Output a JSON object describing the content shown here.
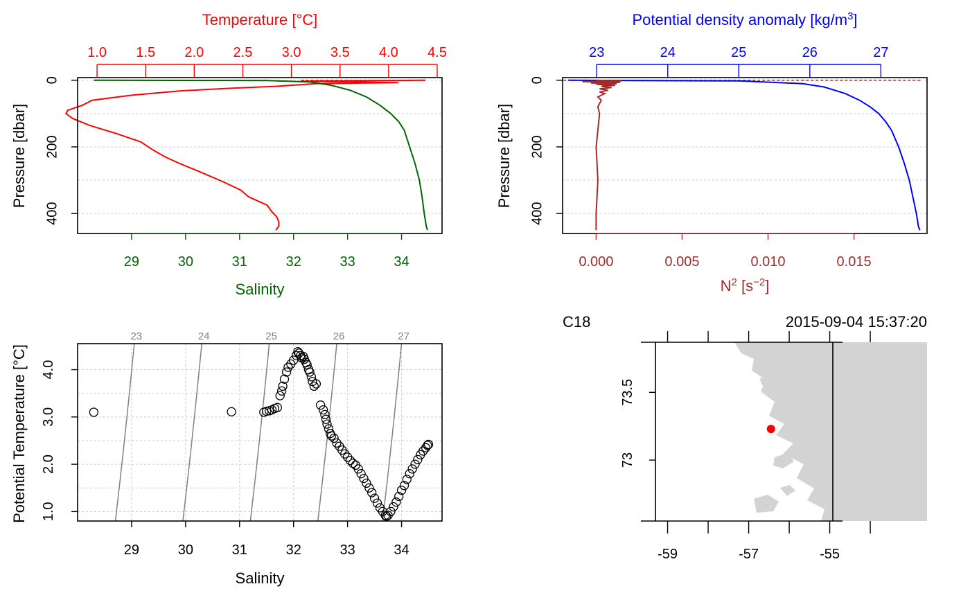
{
  "chart_data": [
    {
      "type": "line",
      "panel": "profile-temperature-salinity",
      "ylabel": "Pressure [dbar]",
      "ylim": [
        460,
        -8
      ],
      "y_ticks": [
        "0",
        "200",
        "400"
      ],
      "y_tick_values": [
        0,
        200,
        400
      ],
      "top_axis": {
        "label": "Temperature [°C]",
        "color": "#ff0000",
        "range": [
          0.8,
          4.55
        ],
        "ticks": [
          "1.0",
          "1.5",
          "2.0",
          "2.5",
          "3.0",
          "3.5",
          "4.0",
          "4.5"
        ],
        "tick_values": [
          1.0,
          1.5,
          2.0,
          2.5,
          3.0,
          3.5,
          4.0,
          4.5
        ]
      },
      "bottom_axis": {
        "label": "Salinity",
        "color": "#006400",
        "range": [
          28.0,
          34.75
        ],
        "ticks": [
          "29",
          "30",
          "31",
          "32",
          "33",
          "34"
        ],
        "tick_values": [
          29,
          30,
          31,
          32,
          33,
          34
        ]
      },
      "series": [
        {
          "name": "Temperature",
          "axis": "top",
          "color": "#ff0000",
          "points": [
            [
              4.38,
              0
            ],
            [
              3.1,
              3
            ],
            [
              4.1,
              7
            ],
            [
              3.25,
              10
            ],
            [
              2.85,
              18
            ],
            [
              2.3,
              25
            ],
            [
              1.85,
              32
            ],
            [
              1.35,
              45
            ],
            [
              0.95,
              60
            ],
            [
              0.85,
              75
            ],
            [
              0.7,
              90
            ],
            [
              0.68,
              100
            ],
            [
              0.75,
              115
            ],
            [
              0.92,
              135
            ],
            [
              1.2,
              160
            ],
            [
              1.45,
              185
            ],
            [
              1.58,
              210
            ],
            [
              1.7,
              230
            ],
            [
              1.85,
              250
            ],
            [
              2.02,
              270
            ],
            [
              2.18,
              290
            ],
            [
              2.3,
              305
            ],
            [
              2.48,
              330
            ],
            [
              2.56,
              350
            ],
            [
              2.75,
              375
            ],
            [
              2.8,
              395
            ],
            [
              2.85,
              410
            ],
            [
              2.87,
              425
            ],
            [
              2.87,
              438
            ],
            [
              2.84,
              450
            ]
          ]
        },
        {
          "name": "Salinity",
          "axis": "bottom",
          "color": "#006400",
          "points": [
            [
              28.3,
              0
            ],
            [
              31.5,
              1
            ],
            [
              32.3,
              5
            ],
            [
              32.7,
              15
            ],
            [
              33.05,
              30
            ],
            [
              33.35,
              50
            ],
            [
              33.6,
              75
            ],
            [
              33.8,
              100
            ],
            [
              33.95,
              125
            ],
            [
              34.05,
              150
            ],
            [
              34.15,
              200
            ],
            [
              34.25,
              250
            ],
            [
              34.33,
              300
            ],
            [
              34.38,
              350
            ],
            [
              34.42,
              400
            ],
            [
              34.46,
              440
            ],
            [
              34.48,
              450
            ]
          ]
        }
      ],
      "surface_lines": [
        {
          "axis": "bottom",
          "color": "#006400",
          "style": "dashed",
          "from": 28.3,
          "to": 31.5
        },
        {
          "axis": "top",
          "color": "#ff0000",
          "style": "dashed",
          "from": 3.1,
          "to": 4.38
        }
      ]
    },
    {
      "type": "line",
      "panel": "profile-density-n2",
      "ylabel": "Pressure [dbar]",
      "ylim": [
        460,
        -8
      ],
      "y_ticks": [
        "0",
        "200",
        "400"
      ],
      "y_tick_values": [
        0,
        200,
        400
      ],
      "top_axis": {
        "label": "Potential density anomaly [kg/m³]",
        "color": "#0000ff",
        "range": [
          22.52,
          27.65
        ],
        "ticks": [
          "23",
          "24",
          "25",
          "26",
          "27"
        ],
        "tick_values": [
          23,
          24,
          25,
          26,
          27
        ]
      },
      "bottom_axis": {
        "label": "N² [s⁻²]",
        "color": "#a52a2a",
        "range": [
          -0.00195,
          0.01925
        ],
        "ticks": [
          "0.000",
          "0.005",
          "0.010",
          "0.015"
        ],
        "tick_values": [
          0.0,
          0.005,
          0.01,
          0.015
        ]
      },
      "series": [
        {
          "name": "Potential density anomaly",
          "axis": "top",
          "color": "#0000ff",
          "points": [
            [
              22.6,
              0
            ],
            [
              25.0,
              2
            ],
            [
              25.9,
              10
            ],
            [
              26.2,
              20
            ],
            [
              26.5,
              40
            ],
            [
              26.7,
              60
            ],
            [
              26.85,
              80
            ],
            [
              26.97,
              100
            ],
            [
              27.07,
              125
            ],
            [
              27.15,
              150
            ],
            [
              27.25,
              200
            ],
            [
              27.33,
              250
            ],
            [
              27.4,
              300
            ],
            [
              27.45,
              350
            ],
            [
              27.5,
              400
            ],
            [
              27.53,
              440
            ],
            [
              27.55,
              450
            ]
          ]
        },
        {
          "name": "N²",
          "axis": "bottom",
          "color": "#a52a2a",
          "points": [
            [
              0.0,
              0
            ],
            [
              0.0015,
              2
            ],
            [
              -0.0008,
              4
            ],
            [
              0.0014,
              6
            ],
            [
              -0.0003,
              8
            ],
            [
              0.0012,
              10
            ],
            [
              0.0,
              12
            ],
            [
              0.0011,
              15
            ],
            [
              0.0003,
              18
            ],
            [
              0.0009,
              22
            ],
            [
              0.0002,
              26
            ],
            [
              0.0007,
              30
            ],
            [
              0.0002,
              35
            ],
            [
              0.0005,
              40
            ],
            [
              0.0001,
              50
            ],
            [
              0.0003,
              60
            ],
            [
              0.0001,
              80
            ],
            [
              0.0002,
              100
            ],
            [
              0.0001,
              150
            ],
            [
              0.0,
              200
            ],
            [
              0.0001,
              300
            ],
            [
              0.0,
              400
            ],
            [
              0.0,
              450
            ]
          ]
        }
      ],
      "surface_lines": [
        {
          "axis": "bottom",
          "color": "#a52a2a",
          "style": "dashed",
          "from": -0.0019,
          "to": 0.0189
        }
      ]
    },
    {
      "type": "scatter",
      "panel": "ts-diagram",
      "xlabel": "Salinity",
      "ylabel": "Potential Temperature [°C]",
      "xlim": [
        28.0,
        34.75
      ],
      "ylim": [
        0.8,
        4.55
      ],
      "x_ticks": [
        "29",
        "30",
        "31",
        "32",
        "33",
        "34"
      ],
      "x_tick_values": [
        29,
        30,
        31,
        32,
        33,
        34
      ],
      "y_ticks": [
        "1.0",
        "2.0",
        "3.0",
        "4.0"
      ],
      "y_tick_values": [
        1.0,
        2.0,
        3.0,
        4.0
      ],
      "isopycnals": [
        {
          "label": "23",
          "s_bottom": 28.7,
          "s_top": 29.05
        },
        {
          "label": "24",
          "s_bottom": 29.95,
          "s_top": 30.3
        },
        {
          "label": "25",
          "s_bottom": 31.2,
          "s_top": 31.55
        },
        {
          "label": "26",
          "s_bottom": 32.45,
          "s_top": 32.8
        },
        {
          "label": "27",
          "s_bottom": 33.65,
          "s_top": 34.0
        }
      ],
      "isopycnal_color": "#808080",
      "points": [
        [
          28.3,
          3.1
        ],
        [
          30.85,
          3.11
        ],
        [
          31.45,
          3.1
        ],
        [
          31.5,
          3.12
        ],
        [
          31.55,
          3.13
        ],
        [
          31.6,
          3.15
        ],
        [
          31.65,
          3.18
        ],
        [
          31.7,
          3.2
        ],
        [
          31.75,
          3.45
        ],
        [
          31.78,
          3.55
        ],
        [
          31.8,
          3.65
        ],
        [
          31.83,
          3.8
        ],
        [
          31.87,
          3.95
        ],
        [
          31.9,
          4.05
        ],
        [
          31.95,
          4.12
        ],
        [
          32.0,
          4.2
        ],
        [
          32.05,
          4.3
        ],
        [
          32.08,
          4.38
        ],
        [
          32.1,
          4.35
        ],
        [
          32.13,
          4.3
        ],
        [
          32.15,
          4.25
        ],
        [
          32.18,
          4.28
        ],
        [
          32.2,
          4.22
        ],
        [
          32.23,
          4.15
        ],
        [
          32.25,
          4.1
        ],
        [
          32.28,
          4.0
        ],
        [
          32.3,
          3.95
        ],
        [
          32.33,
          3.85
        ],
        [
          32.35,
          3.75
        ],
        [
          32.38,
          3.65
        ],
        [
          32.42,
          3.7
        ],
        [
          32.5,
          3.25
        ],
        [
          32.55,
          3.15
        ],
        [
          32.58,
          3.05
        ],
        [
          32.6,
          2.95
        ],
        [
          32.62,
          2.85
        ],
        [
          32.65,
          2.75
        ],
        [
          32.68,
          2.65
        ],
        [
          32.7,
          2.6
        ],
        [
          32.75,
          2.55
        ],
        [
          32.8,
          2.45
        ],
        [
          32.85,
          2.38
        ],
        [
          32.9,
          2.3
        ],
        [
          32.95,
          2.22
        ],
        [
          33.0,
          2.15
        ],
        [
          33.05,
          2.08
        ],
        [
          33.1,
          2.02
        ],
        [
          33.15,
          1.98
        ],
        [
          33.2,
          1.9
        ],
        [
          33.25,
          1.8
        ],
        [
          33.3,
          1.7
        ],
        [
          33.35,
          1.6
        ],
        [
          33.4,
          1.5
        ],
        [
          33.45,
          1.4
        ],
        [
          33.5,
          1.28
        ],
        [
          33.55,
          1.18
        ],
        [
          33.6,
          1.08
        ],
        [
          33.65,
          1.0
        ],
        [
          33.7,
          0.92
        ],
        [
          33.72,
          0.9
        ],
        [
          33.75,
          0.92
        ],
        [
          33.8,
          1.0
        ],
        [
          33.85,
          1.1
        ],
        [
          33.9,
          1.2
        ],
        [
          33.95,
          1.32
        ],
        [
          34.0,
          1.45
        ],
        [
          34.05,
          1.55
        ],
        [
          34.1,
          1.68
        ],
        [
          34.15,
          1.8
        ],
        [
          34.2,
          1.9
        ],
        [
          34.25,
          2.0
        ],
        [
          34.3,
          2.1
        ],
        [
          34.35,
          2.2
        ],
        [
          34.4,
          2.28
        ],
        [
          34.45,
          2.35
        ],
        [
          34.48,
          2.4
        ],
        [
          34.5,
          2.42
        ]
      ]
    },
    {
      "type": "map",
      "panel": "station-map",
      "station_label": "C18",
      "datetime": "2015-09-04 15:37:20",
      "lon_range": [
        -59.3,
        -52.6
      ],
      "lat_range": [
        72.55,
        73.87
      ],
      "x_ticks": [
        "-59",
        "-57",
        "-55"
      ],
      "x_tick_values": [
        -59,
        -57,
        -55
      ],
      "y_ticks": [
        "73.5",
        "73"
      ],
      "y_tick_values": [
        73.5,
        73.0
      ],
      "station_position": {
        "lon": -56.45,
        "lat": 73.23
      },
      "station_color": "#ff0000",
      "land_color": "#d3d3d3"
    }
  ]
}
